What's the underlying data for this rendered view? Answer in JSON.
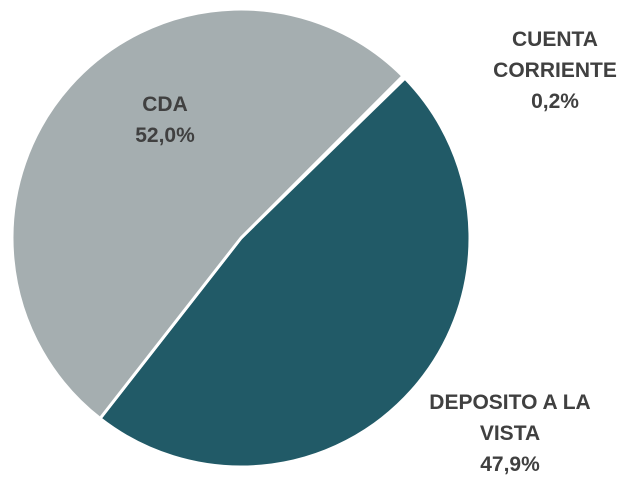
{
  "chart_data": {
    "type": "pie",
    "categories": [
      "CUENTA CORRIENTE",
      "DEPOSITO A LA VISTA",
      "CDA"
    ],
    "values": [
      0.2,
      47.9,
      52.0
    ],
    "value_labels": [
      "0,2%",
      "47,9%",
      "52,0%"
    ],
    "colors": [
      "#8c9a9d",
      "#215a67",
      "#a5aeb0"
    ]
  }
}
